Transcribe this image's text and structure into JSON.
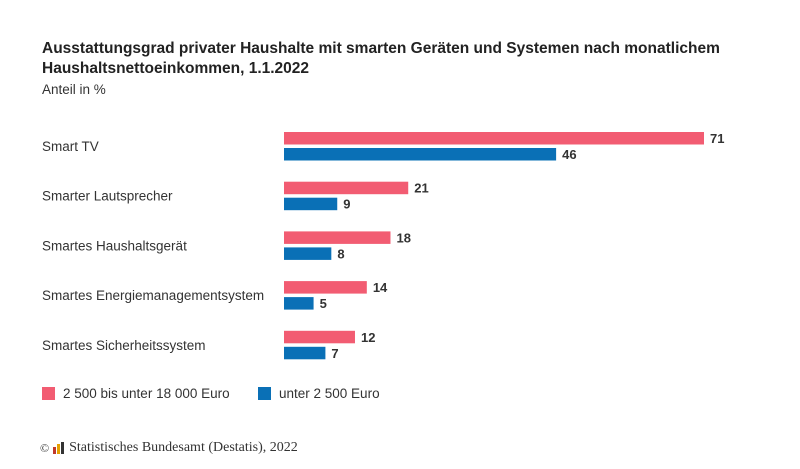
{
  "chart_data": {
    "type": "bar",
    "orientation": "horizontal",
    "title": "Ausstattungsgrad privater Haushalte mit smarten Geräten und Systemen nach monatlichem Haushaltsnettoeinkommen, 1.1.2022",
    "subtitle": "Anteil in %",
    "categories": [
      "Smart TV",
      "Smarter Lautsprecher",
      "Smartes Haushaltsgerät",
      "Smartes Energiemanagementsystem",
      "Smartes Sicherheitssystem"
    ],
    "series": [
      {
        "name": "2 500 bis unter 18 000 Euro",
        "color": "#f25c72",
        "values": [
          71,
          21,
          18,
          14,
          12
        ]
      },
      {
        "name": "unter 2 500 Euro",
        "color": "#0a70b6",
        "values": [
          46,
          9,
          8,
          5,
          7
        ]
      }
    ],
    "xlim": [
      0,
      71
    ],
    "grid": false,
    "legend": "bottom-left",
    "data_labels": true
  },
  "source": "Statistisches Bundesamt (Destatis), 2022",
  "copyright_symbol": "©"
}
